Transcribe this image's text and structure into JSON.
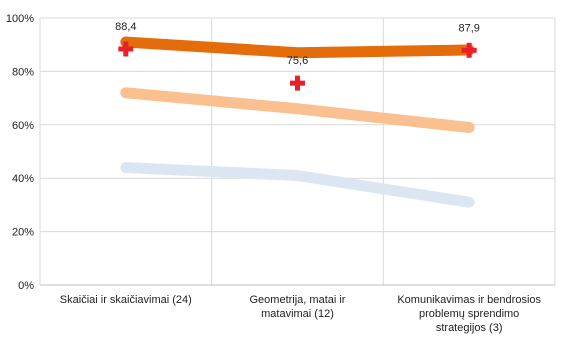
{
  "chart_data": {
    "type": "line",
    "categories": [
      [
        "Skaičiai ir skaičiavimai (24)"
      ],
      [
        "Geometrija, matai ir",
        "matavimai (12)"
      ],
      [
        "Komunikavimas ir bendrosios",
        "problemų sprendimo",
        "strategijos (3)"
      ]
    ],
    "y_ticks": [
      "0%",
      "20%",
      "40%",
      "60%",
      "80%",
      "100%"
    ],
    "ylim": [
      0,
      100
    ],
    "grid": true,
    "series": [
      {
        "color": "#E46C0A",
        "values": [
          91,
          87,
          88
        ],
        "style": "thick-line"
      },
      {
        "color": "#FAC090",
        "values": [
          72,
          66,
          59
        ],
        "style": "thick-line"
      },
      {
        "color": "#DCE6F2",
        "values": [
          44,
          41,
          31
        ],
        "style": "thick-line"
      },
      {
        "color": "#E8202A",
        "values": [
          88.4,
          75.6,
          87.9
        ],
        "style": "marker",
        "labels": [
          "88,4",
          "75,6",
          "87,9"
        ]
      }
    ]
  }
}
